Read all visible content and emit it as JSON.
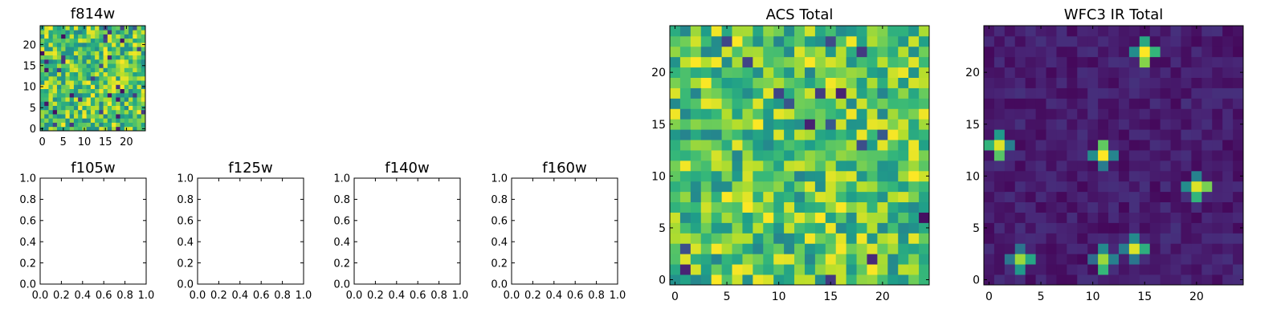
{
  "figure": {
    "description_free": true
  },
  "chart_data": [
    {
      "type": "heatmap",
      "title": "f814w",
      "x_ticks": [
        0,
        5,
        10,
        15,
        20
      ],
      "y_ticks": [
        0,
        5,
        10,
        15,
        20
      ],
      "xlim": [
        -0.5,
        24.5
      ],
      "ylim": [
        -0.5,
        24.5
      ],
      "colormap": "viridis",
      "grid_size": 25,
      "values_seed": 11,
      "value_profile": "bright_noise"
    },
    {
      "type": "empty",
      "title": "f105w",
      "x_ticks": [
        "0.0",
        "0.2",
        "0.4",
        "0.6",
        "0.8",
        "1.0"
      ],
      "y_ticks": [
        "0.0",
        "0.2",
        "0.4",
        "0.6",
        "0.8",
        "1.0"
      ],
      "xlim": [
        0,
        1
      ],
      "ylim": [
        0,
        1
      ]
    },
    {
      "type": "empty",
      "title": "f125w",
      "x_ticks": [
        "0.0",
        "0.2",
        "0.4",
        "0.6",
        "0.8",
        "1.0"
      ],
      "y_ticks": [
        "0.0",
        "0.2",
        "0.4",
        "0.6",
        "0.8",
        "1.0"
      ],
      "xlim": [
        0,
        1
      ],
      "ylim": [
        0,
        1
      ]
    },
    {
      "type": "empty",
      "title": "f140w",
      "x_ticks": [
        "0.0",
        "0.2",
        "0.4",
        "0.6",
        "0.8",
        "1.0"
      ],
      "y_ticks": [
        "0.0",
        "0.2",
        "0.4",
        "0.6",
        "0.8",
        "1.0"
      ],
      "xlim": [
        0,
        1
      ],
      "ylim": [
        0,
        1
      ]
    },
    {
      "type": "empty",
      "title": "f160w",
      "x_ticks": [
        "0.0",
        "0.2",
        "0.4",
        "0.6",
        "0.8",
        "1.0"
      ],
      "y_ticks": [
        "0.0",
        "0.2",
        "0.4",
        "0.6",
        "0.8",
        "1.0"
      ],
      "xlim": [
        0,
        1
      ],
      "ylim": [
        0,
        1
      ]
    },
    {
      "type": "heatmap",
      "title": "ACS Total",
      "x_ticks": [
        0,
        5,
        10,
        15,
        20
      ],
      "y_ticks": [
        0,
        5,
        10,
        15,
        20
      ],
      "xlim": [
        -0.5,
        24.5
      ],
      "ylim": [
        -0.5,
        24.5
      ],
      "colormap": "viridis",
      "grid_size": 25,
      "values_seed": 42,
      "value_profile": "bright_noise"
    },
    {
      "type": "heatmap",
      "title": "WFC3 IR Total",
      "x_ticks": [
        0,
        5,
        10,
        15,
        20
      ],
      "y_ticks": [
        0,
        5,
        10,
        15,
        20
      ],
      "xlim": [
        -0.5,
        24.5
      ],
      "ylim": [
        -0.5,
        24.5
      ],
      "colormap": "viridis",
      "grid_size": 25,
      "values_seed": 7,
      "value_profile": "dark_with_sources",
      "bright_sources": [
        {
          "x": 15,
          "y": 22,
          "peak": 1.0
        },
        {
          "x": 1,
          "y": 13,
          "peak": 0.95
        },
        {
          "x": 11,
          "y": 12,
          "peak": 1.0
        },
        {
          "x": 20,
          "y": 9,
          "peak": 0.95
        },
        {
          "x": 3,
          "y": 2,
          "peak": 0.85
        },
        {
          "x": 11,
          "y": 2,
          "peak": 0.85
        },
        {
          "x": 14,
          "y": 3,
          "peak": 0.95
        }
      ]
    }
  ]
}
